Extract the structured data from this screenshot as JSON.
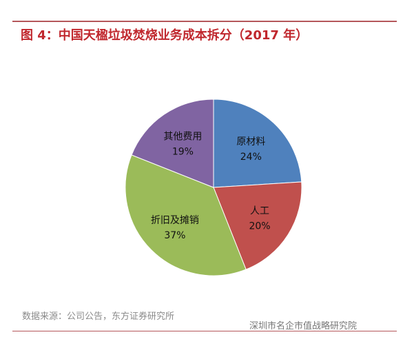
{
  "chart_data": {
    "type": "pie",
    "title": "图 4：中国天楹垃圾焚烧业务成本拆分（2017 年）",
    "start_angle": "12 o'clock, clockwise",
    "slices": [
      {
        "label": "原材料",
        "value": 24,
        "value_label": "24%",
        "color": "#4f81bd"
      },
      {
        "label": "人工",
        "value": 20,
        "value_label": "20%",
        "color": "#c0504d"
      },
      {
        "label": "折旧及摊销",
        "value": 37,
        "value_label": "37%",
        "color": "#9bbb59"
      },
      {
        "label": "其他费用",
        "value": 19,
        "value_label": "19%",
        "color": "#8064a2"
      }
    ],
    "source": "数据来源：公司公告，东方证券研究所"
  },
  "watermark": "深圳市名企市值战略研究院",
  "colors": {
    "title": "#c0272d",
    "rule": "#b5575a"
  }
}
